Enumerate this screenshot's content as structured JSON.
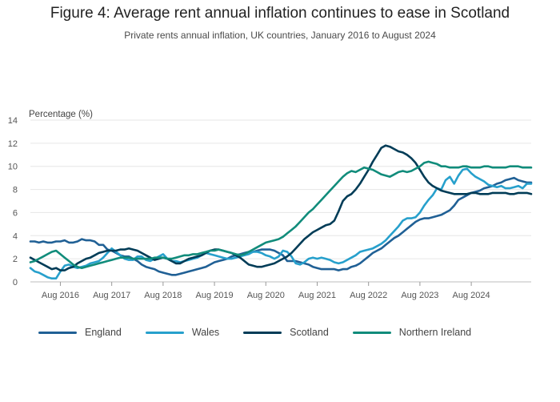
{
  "header": {
    "title": "Figure 4: Average rent annual inflation continues to ease in Scotland",
    "subtitle": "Private rents annual inflation, UK countries, January 2016 to August 2024"
  },
  "colors": {
    "England": "#206095",
    "Wales": "#27a0cc",
    "Scotland": "#003c57",
    "Northern Ireland": "#118c7b",
    "grid": "#e6e6e6"
  },
  "chart_data": {
    "type": "line",
    "ylabel": "Percentage (%)",
    "ylim": [
      0,
      14
    ],
    "yticks": [
      0,
      2,
      4,
      6,
      8,
      10,
      12,
      14
    ],
    "x_start": "Jan 2016",
    "x_end": "Aug 2024",
    "xticks": [
      "Aug 2016",
      "Aug 2017",
      "Aug 2018",
      "Aug 2019",
      "Aug 2020",
      "Aug 2021",
      "Aug 2022",
      "Aug 2023",
      "Aug 2024"
    ],
    "grid": true,
    "legend_position": "bottom",
    "series": [
      {
        "name": "England",
        "values": [
          3.5,
          3.5,
          3.4,
          3.5,
          3.4,
          3.4,
          3.5,
          3.5,
          3.6,
          3.4,
          3.4,
          3.5,
          3.7,
          3.6,
          3.6,
          3.5,
          3.2,
          3.2,
          2.8,
          2.7,
          2.5,
          2.3,
          2.2,
          2.2,
          2.0,
          1.8,
          1.5,
          1.3,
          1.2,
          1.1,
          0.9,
          0.8,
          0.7,
          0.6,
          0.6,
          0.7,
          0.8,
          0.9,
          1.0,
          1.1,
          1.2,
          1.3,
          1.5,
          1.7,
          1.8,
          1.9,
          2.0,
          2.2,
          2.3,
          2.4,
          2.5,
          2.6,
          2.6,
          2.7,
          2.8,
          2.8,
          2.8,
          2.7,
          2.5,
          2.3,
          1.8,
          1.8,
          1.8,
          1.7,
          1.6,
          1.5,
          1.3,
          1.2,
          1.1,
          1.1,
          1.1,
          1.1,
          1.0,
          1.1,
          1.1,
          1.3,
          1.4,
          1.6,
          1.9,
          2.2,
          2.5,
          2.7,
          2.9,
          3.2,
          3.5,
          3.8,
          4.0,
          4.3,
          4.6,
          4.9,
          5.2,
          5.4,
          5.5,
          5.5,
          5.6,
          5.7,
          5.8,
          6.0,
          6.2,
          6.6,
          7.1,
          7.3,
          7.5,
          7.7,
          7.8,
          7.9,
          8.1,
          8.2,
          8.3,
          8.5,
          8.6,
          8.8,
          8.9,
          9.0,
          8.8,
          8.7,
          8.6,
          8.6
        ]
      },
      {
        "name": "Wales",
        "values": [
          1.2,
          0.9,
          0.8,
          0.6,
          0.4,
          0.3,
          0.3,
          0.9,
          1.4,
          1.5,
          1.3,
          1.2,
          1.3,
          1.4,
          1.6,
          1.7,
          1.8,
          2.1,
          2.5,
          2.9,
          2.6,
          2.3,
          2.0,
          1.9,
          1.9,
          2.2,
          2.2,
          1.9,
          1.8,
          2.0,
          2.2,
          2.4,
          2.0,
          1.8,
          1.8,
          1.7,
          1.8,
          1.9,
          2.0,
          2.1,
          2.3,
          2.5,
          2.4,
          2.3,
          2.2,
          2.1,
          2.0,
          2.0,
          2.1,
          2.2,
          2.3,
          2.4,
          2.6,
          2.6,
          2.5,
          2.3,
          2.2,
          2.0,
          2.2,
          2.7,
          2.6,
          2.2,
          1.6,
          1.5,
          1.7,
          2.0,
          2.1,
          2.0,
          2.1,
          2.0,
          1.9,
          1.7,
          1.6,
          1.7,
          1.9,
          2.1,
          2.3,
          2.6,
          2.7,
          2.8,
          2.9,
          3.1,
          3.3,
          3.6,
          4.0,
          4.4,
          4.8,
          5.3,
          5.5,
          5.5,
          5.6,
          6.0,
          6.6,
          7.1,
          7.5,
          8.1,
          8.0,
          8.8,
          9.1,
          8.5,
          9.2,
          9.7,
          9.8,
          9.4,
          9.1,
          8.9,
          8.7,
          8.4,
          8.3,
          8.2,
          8.3,
          8.1,
          8.1,
          8.2,
          8.3,
          8.1,
          8.5,
          8.5
        ]
      },
      {
        "name": "Scotland",
        "values": [
          2.1,
          1.9,
          1.7,
          1.5,
          1.3,
          1.1,
          1.2,
          1.0,
          1.0,
          1.2,
          1.3,
          1.6,
          1.8,
          2.0,
          2.1,
          2.3,
          2.5,
          2.6,
          2.7,
          2.7,
          2.7,
          2.8,
          2.8,
          2.9,
          2.8,
          2.7,
          2.5,
          2.3,
          2.1,
          1.9,
          2.0,
          2.1,
          2.0,
          1.8,
          1.6,
          1.6,
          1.8,
          2.0,
          2.1,
          2.2,
          2.3,
          2.5,
          2.7,
          2.8,
          2.8,
          2.7,
          2.6,
          2.5,
          2.3,
          2.1,
          1.8,
          1.5,
          1.4,
          1.3,
          1.3,
          1.4,
          1.5,
          1.6,
          1.8,
          2.0,
          2.2,
          2.5,
          2.9,
          3.3,
          3.7,
          4.0,
          4.3,
          4.5,
          4.7,
          4.9,
          5.0,
          5.3,
          6.1,
          7.0,
          7.4,
          7.6,
          8.0,
          8.5,
          9.1,
          9.7,
          10.4,
          11.0,
          11.6,
          11.8,
          11.7,
          11.5,
          11.3,
          11.2,
          11.0,
          10.7,
          10.3,
          9.7,
          9.1,
          8.6,
          8.3,
          8.1,
          7.9,
          7.8,
          7.7,
          7.6,
          7.6,
          7.6,
          7.6,
          7.7,
          7.7,
          7.6,
          7.6,
          7.6,
          7.7,
          7.7,
          7.7,
          7.7,
          7.6,
          7.6,
          7.7,
          7.7,
          7.7,
          7.6
        ]
      },
      {
        "name": "Northern Ireland",
        "values": [
          1.7,
          1.8,
          2.0,
          2.2,
          2.4,
          2.6,
          2.7,
          2.4,
          2.1,
          1.8,
          1.5,
          1.3,
          1.2,
          1.3,
          1.4,
          1.5,
          1.6,
          1.7,
          1.8,
          1.9,
          2.0,
          2.1,
          2.1,
          2.1,
          2.0,
          2.0,
          2.0,
          2.0,
          2.0,
          2.1,
          2.1,
          2.1,
          2.0,
          2.0,
          2.1,
          2.2,
          2.3,
          2.3,
          2.4,
          2.4,
          2.5,
          2.6,
          2.7,
          2.7,
          2.8,
          2.7,
          2.6,
          2.5,
          2.4,
          2.3,
          2.4,
          2.6,
          2.8,
          3.0,
          3.2,
          3.4,
          3.5,
          3.6,
          3.7,
          3.9,
          4.2,
          4.5,
          4.8,
          5.2,
          5.6,
          6.0,
          6.3,
          6.7,
          7.1,
          7.5,
          7.9,
          8.3,
          8.7,
          9.1,
          9.4,
          9.6,
          9.5,
          9.7,
          9.9,
          9.8,
          9.7,
          9.5,
          9.3,
          9.2,
          9.1,
          9.3,
          9.5,
          9.6,
          9.5,
          9.6,
          9.8,
          10.0,
          10.3,
          10.4,
          10.3,
          10.2,
          10.0,
          10.0,
          9.9,
          9.9,
          9.9,
          10.0,
          10.0,
          9.9,
          9.9,
          9.9,
          10.0,
          10.0,
          9.9,
          9.9,
          9.9,
          9.9,
          10.0,
          10.0,
          10.0,
          9.9,
          9.9,
          9.9
        ]
      }
    ]
  }
}
